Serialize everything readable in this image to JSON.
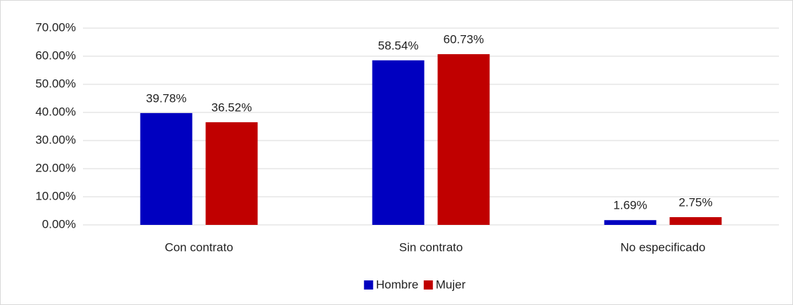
{
  "chart_data": {
    "type": "bar",
    "categories": [
      "Con contrato",
      "Sin contrato",
      "No especificado"
    ],
    "series": [
      {
        "name": "Hombre",
        "color": "#0000c0",
        "values": [
          39.78,
          58.54,
          1.69
        ],
        "value_labels": [
          "39.78%",
          "58.54%",
          "1.69%"
        ]
      },
      {
        "name": "Mujer",
        "color": "#c00000",
        "values": [
          36.52,
          60.73,
          2.75
        ],
        "value_labels": [
          "36.52%",
          "60.73%",
          "2.75%"
        ]
      }
    ],
    "ylim": [
      0,
      70
    ],
    "yticks": [
      {
        "value": 0,
        "label": "0.00%"
      },
      {
        "value": 10,
        "label": "10.00%"
      },
      {
        "value": 20,
        "label": "20.00%"
      },
      {
        "value": 30,
        "label": "30.00%"
      },
      {
        "value": 40,
        "label": "40.00%"
      },
      {
        "value": 50,
        "label": "50.00%"
      },
      {
        "value": 60,
        "label": "60.00%"
      },
      {
        "value": 70,
        "label": "70.00%"
      }
    ],
    "grid": true,
    "legend": "bottom"
  }
}
